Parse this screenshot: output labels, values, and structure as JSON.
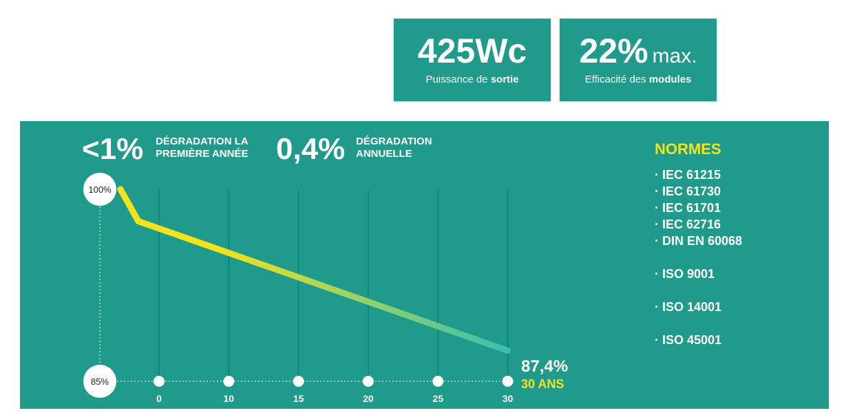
{
  "stats": [
    {
      "value": "425Wc",
      "suffix": "",
      "caption_pre": "Puissance de ",
      "caption_bold": "sortie"
    },
    {
      "value": "22%",
      "suffix": "max.",
      "caption_pre": "Efficacité des ",
      "caption_bold": "modules"
    }
  ],
  "highlights": [
    {
      "value": "<1%",
      "label_line1": "DÉGRADATION LA",
      "label_line2": "PREMIÈRE ANNÉE"
    },
    {
      "value": "0,4%",
      "label_line1": "DÉGRADATION",
      "label_line2": "ANNUELLE"
    }
  ],
  "norms": {
    "title": "NORMES",
    "items": [
      "· IEC 61215",
      "· IEC 61730",
      "· IEC 61701",
      "· IEC 62716",
      "· DIN EN 60068",
      "· ISO 9001",
      "· ISO 14001",
      "· ISO 45001"
    ]
  },
  "chart_data": {
    "type": "line",
    "title": "",
    "xlabel": "",
    "ylabel": "",
    "x_ticks": [
      "0",
      "10",
      "15",
      "20",
      "25",
      "30"
    ],
    "y_labels": [
      "100%",
      "85%"
    ],
    "ylim": [
      85,
      100
    ],
    "series": [
      {
        "x": [
          -5,
          -3,
          30
        ],
        "y": [
          100,
          97.5,
          87.4
        ]
      }
    ],
    "end_value": "87,4%",
    "end_label": "30 ANS",
    "grid": true,
    "colors": {
      "start": "#f2e31d",
      "end": "#3bbfb0",
      "grid": "#137a6e",
      "background": "#1f9a8b"
    }
  }
}
